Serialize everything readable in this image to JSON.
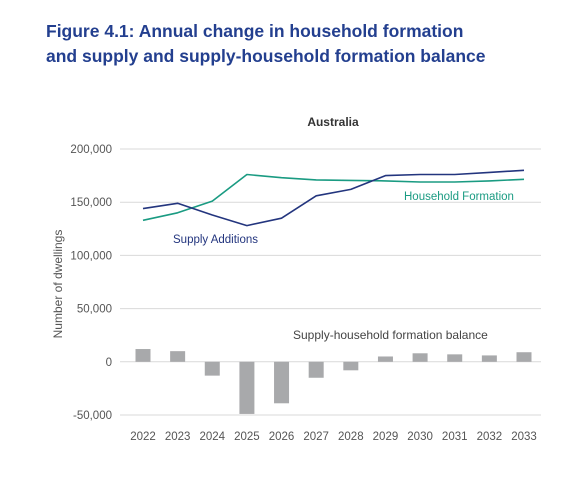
{
  "figure": {
    "title_line1": "Figure 4.1: Annual change in household formation",
    "title_line2": "and supply and supply-household formation balance"
  },
  "colors": {
    "title": "#233f8f",
    "supply_line": "#23357e",
    "household_line": "#1a9b82",
    "bar": "#a8a9ab",
    "grid": "#d9d9d9",
    "axis_text": "#555555"
  },
  "chart_data": {
    "type": "line",
    "title": "Australia",
    "ylabel": "Number of dwellings",
    "xlabel": "",
    "ylim": [
      -50000,
      200000
    ],
    "yticks": [
      200000,
      150000,
      100000,
      50000,
      0,
      -50000
    ],
    "ytick_labels": [
      "200,000",
      "150,000",
      "100,000",
      "50,000",
      "0",
      "-50,000"
    ],
    "grid": true,
    "categories": [
      "2022",
      "2023",
      "2024",
      "2025",
      "2026",
      "2027",
      "2028",
      "2029",
      "2030",
      "2031",
      "2032",
      "2033"
    ],
    "series": [
      {
        "name": "Supply Additions",
        "type": "line",
        "color": "#23357e",
        "values": [
          144000,
          149000,
          138000,
          128000,
          135000,
          156000,
          162000,
          175000,
          176000,
          176000,
          178000,
          180000
        ]
      },
      {
        "name": "Household Formation",
        "type": "line",
        "color": "#1a9b82",
        "values": [
          133000,
          140000,
          151000,
          176000,
          173000,
          171000,
          170500,
          170000,
          169000,
          169000,
          170000,
          171500
        ]
      },
      {
        "name": "Supply-household formation balance",
        "type": "bar",
        "color": "#a8a9ab",
        "values": [
          12000,
          10000,
          -13000,
          -49000,
          -39000,
          -15000,
          -8000,
          5000,
          8000,
          7000,
          6000,
          9000
        ]
      }
    ]
  }
}
